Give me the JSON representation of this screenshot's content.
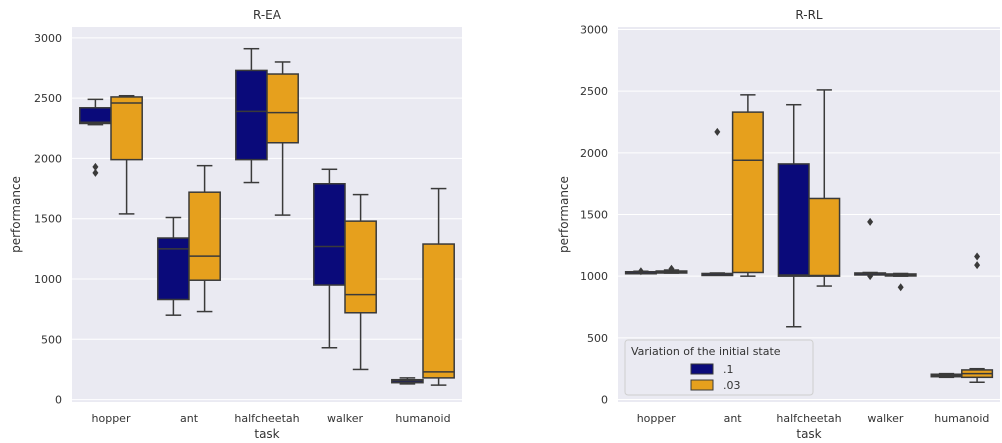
{
  "chart_data": [
    {
      "type": "box",
      "title": "R-EA",
      "xlabel": "task",
      "ylabel": "performance",
      "categories": [
        "hopper",
        "ant",
        "halfcheetah",
        "walker",
        "humanoid"
      ],
      "ylim": [
        -20,
        3090
      ],
      "yticks": [
        0,
        500,
        1000,
        1500,
        2000,
        2500,
        3000
      ],
      "grid": true,
      "series": [
        {
          "name": ".1",
          "color": "#0a0a7a",
          "boxes": [
            {
              "whislo": 2280,
              "q1": 2290,
              "med": 2300,
              "q3": 2420,
              "whishi": 2490,
              "fliers": [
                1930,
                1880
              ]
            },
            {
              "whislo": 700,
              "q1": 830,
              "med": 1250,
              "q3": 1340,
              "whishi": 1510,
              "fliers": []
            },
            {
              "whislo": 1800,
              "q1": 1990,
              "med": 2390,
              "q3": 2730,
              "whishi": 2910,
              "fliers": []
            },
            {
              "whislo": 430,
              "q1": 950,
              "med": 1270,
              "q3": 1790,
              "whishi": 1910,
              "fliers": []
            },
            {
              "whislo": 130,
              "q1": 140,
              "med": 155,
              "q3": 165,
              "whishi": 180,
              "fliers": []
            }
          ]
        },
        {
          "name": ".03",
          "color": "#e6a01d",
          "boxes": [
            {
              "whislo": 1540,
              "q1": 1990,
              "med": 2460,
              "q3": 2510,
              "whishi": 2520,
              "fliers": []
            },
            {
              "whislo": 730,
              "q1": 990,
              "med": 1190,
              "q3": 1720,
              "whishi": 1940,
              "fliers": []
            },
            {
              "whislo": 1530,
              "q1": 2130,
              "med": 2380,
              "q3": 2700,
              "whishi": 2800,
              "fliers": []
            },
            {
              "whislo": 250,
              "q1": 720,
              "med": 870,
              "q3": 1480,
              "whishi": 1700,
              "fliers": []
            },
            {
              "whislo": 120,
              "q1": 180,
              "med": 230,
              "q3": 1290,
              "whishi": 1750,
              "fliers": []
            }
          ]
        }
      ]
    },
    {
      "type": "box",
      "title": "R-RL",
      "xlabel": "task",
      "ylabel": "performance",
      "categories": [
        "hopper",
        "ant",
        "halfcheetah",
        "walker",
        "humanoid"
      ],
      "ylim": [
        -20,
        3020
      ],
      "yticks": [
        0,
        500,
        1000,
        1500,
        2000,
        2500,
        3000
      ],
      "grid": true,
      "legend": {
        "title": "Variation of the initial state",
        "placement": "lower-left"
      },
      "series": [
        {
          "name": ".1",
          "color": "#0a0a7a",
          "boxes": [
            {
              "whislo": 1025,
              "q1": 1030,
              "med": 1033,
              "q3": 1036,
              "whishi": 1040,
              "fliers": [
                1040
              ]
            },
            {
              "whislo": 1010,
              "q1": 1013,
              "med": 1018,
              "q3": 1022,
              "whishi": 1026,
              "fliers": [
                2170
              ]
            },
            {
              "whislo": 590,
              "q1": 1000,
              "med": 1010,
              "q3": 1910,
              "whishi": 2390,
              "fliers": []
            },
            {
              "whislo": 1015,
              "q1": 1018,
              "med": 1022,
              "q3": 1026,
              "whishi": 1030,
              "fliers": [
                1440,
                1000
              ]
            },
            {
              "whislo": 180,
              "q1": 185,
              "med": 195,
              "q3": 205,
              "whishi": 210,
              "fliers": []
            }
          ]
        },
        {
          "name": ".03",
          "color": "#e6a01d",
          "boxes": [
            {
              "whislo": 1025,
              "q1": 1030,
              "med": 1035,
              "q3": 1042,
              "whishi": 1050,
              "fliers": [
                1060
              ]
            },
            {
              "whislo": 1000,
              "q1": 1030,
              "med": 1940,
              "q3": 2330,
              "whishi": 2470,
              "fliers": []
            },
            {
              "whislo": 920,
              "q1": 1000,
              "med": 1005,
              "q3": 1630,
              "whishi": 2510,
              "fliers": []
            },
            {
              "whislo": 1000,
              "q1": 1005,
              "med": 1012,
              "q3": 1018,
              "whishi": 1022,
              "fliers": [
                910
              ]
            },
            {
              "whislo": 140,
              "q1": 180,
              "med": 210,
              "q3": 240,
              "whishi": 250,
              "fliers": [
                1160,
                1090
              ]
            }
          ]
        }
      ]
    }
  ]
}
